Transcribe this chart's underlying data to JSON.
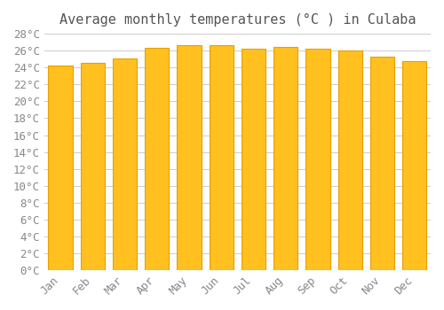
{
  "title": "Average monthly temperatures (°C ) in Culaba",
  "months": [
    "Jan",
    "Feb",
    "Mar",
    "Apr",
    "May",
    "Jun",
    "Jul",
    "Aug",
    "Sep",
    "Oct",
    "Nov",
    "Dec"
  ],
  "values": [
    24.2,
    24.5,
    25.1,
    26.3,
    26.7,
    26.6,
    26.2,
    26.4,
    26.2,
    26.0,
    25.3,
    24.8
  ],
  "bar_color": "#FFC020",
  "bar_edge_color": "#E8A000",
  "ylim": [
    0,
    28
  ],
  "yticks": [
    0,
    2,
    4,
    6,
    8,
    10,
    12,
    14,
    16,
    18,
    20,
    22,
    24,
    26,
    28
  ],
  "background_color": "#ffffff",
  "grid_color": "#cccccc",
  "title_fontsize": 11,
  "tick_fontsize": 9,
  "font_family": "monospace"
}
